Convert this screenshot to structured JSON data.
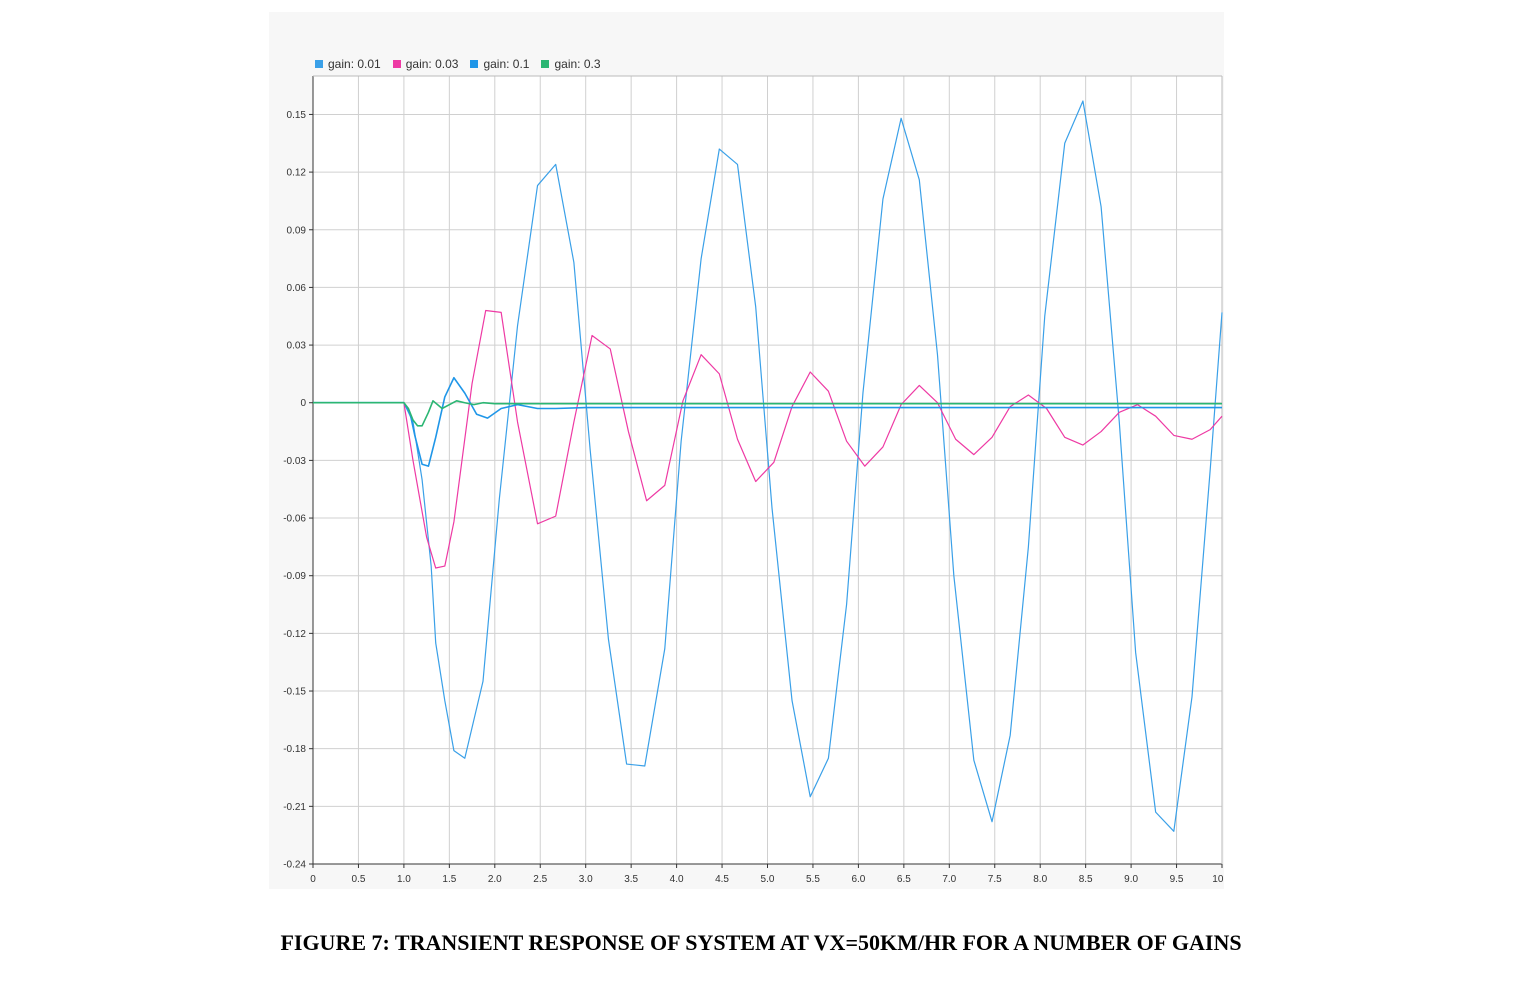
{
  "caption": "FIGURE 7: TRANSIENT RESPONSE OF SYSTEM AT VX=50KM/HR FOR A NUMBER OF GAINS",
  "chart_data": {
    "type": "line",
    "title": "",
    "xlabel": "",
    "ylabel": "",
    "xlim": [
      0,
      10
    ],
    "ylim": [
      -0.24,
      0.17
    ],
    "grid": true,
    "legend_position": "top-left",
    "x_ticks": [
      "0",
      "0.5",
      "1.0",
      "1.5",
      "2.0",
      "2.5",
      "3.0",
      "3.5",
      "4.0",
      "4.5",
      "5.0",
      "5.5",
      "6.0",
      "6.5",
      "7.0",
      "7.5",
      "8.0",
      "8.5",
      "9.0",
      "9.5",
      "10.0"
    ],
    "x_tick_values": [
      0,
      0.5,
      1,
      1.5,
      2,
      2.5,
      3,
      3.5,
      4,
      4.5,
      5,
      5.5,
      6,
      6.5,
      7,
      7.5,
      8,
      8.5,
      9,
      9.5,
      10
    ],
    "y_ticks": [
      "0.15",
      "0.12",
      "0.09",
      "0.06",
      "0.03",
      "0",
      "-0.03",
      "-0.06",
      "-0.09",
      "-0.12",
      "-0.15",
      "-0.18",
      "-0.21",
      "-0.24"
    ],
    "y_tick_values": [
      0.15,
      0.12,
      0.09,
      0.06,
      0.03,
      0,
      -0.03,
      -0.06,
      -0.09,
      -0.12,
      -0.15,
      -0.18,
      -0.21,
      -0.24
    ],
    "series": [
      {
        "name": "gain: 0.01",
        "color": "#3aa0e8",
        "points": [
          [
            0,
            0
          ],
          [
            1.0,
            0
          ],
          [
            1.1,
            -0.01
          ],
          [
            1.2,
            -0.04
          ],
          [
            1.3,
            -0.085
          ],
          [
            1.35,
            -0.125
          ],
          [
            1.45,
            -0.155
          ],
          [
            1.55,
            -0.181
          ],
          [
            1.67,
            -0.185
          ],
          [
            1.87,
            -0.145
          ],
          [
            2.05,
            -0.05
          ],
          [
            2.25,
            0.04
          ],
          [
            2.47,
            0.113
          ],
          [
            2.67,
            0.124
          ],
          [
            2.87,
            0.073
          ],
          [
            3.05,
            -0.025
          ],
          [
            3.25,
            -0.123
          ],
          [
            3.45,
            -0.188
          ],
          [
            3.65,
            -0.189
          ],
          [
            3.87,
            -0.128
          ],
          [
            4.05,
            -0.02
          ],
          [
            4.27,
            0.075
          ],
          [
            4.47,
            0.132
          ],
          [
            4.67,
            0.124
          ],
          [
            4.87,
            0.05
          ],
          [
            5.05,
            -0.055
          ],
          [
            5.27,
            -0.155
          ],
          [
            5.47,
            -0.205
          ],
          [
            5.67,
            -0.185
          ],
          [
            5.87,
            -0.105
          ],
          [
            6.05,
            0.005
          ],
          [
            6.27,
            0.106
          ],
          [
            6.47,
            0.148
          ],
          [
            6.67,
            0.116
          ],
          [
            6.87,
            0.025
          ],
          [
            7.05,
            -0.09
          ],
          [
            7.27,
            -0.186
          ],
          [
            7.47,
            -0.218
          ],
          [
            7.67,
            -0.173
          ],
          [
            7.87,
            -0.075
          ],
          [
            8.05,
            0.045
          ],
          [
            8.27,
            0.135
          ],
          [
            8.47,
            0.157
          ],
          [
            8.67,
            0.102
          ],
          [
            8.87,
            -0.01
          ],
          [
            9.05,
            -0.13
          ],
          [
            9.27,
            -0.213
          ],
          [
            9.47,
            -0.223
          ],
          [
            9.67,
            -0.153
          ],
          [
            9.87,
            -0.035
          ],
          [
            10.0,
            0.047
          ]
        ]
      },
      {
        "name": "gain: 0.03",
        "color": "#ee3aa4",
        "points": [
          [
            0,
            0
          ],
          [
            1.0,
            0
          ],
          [
            1.1,
            -0.03
          ],
          [
            1.25,
            -0.07
          ],
          [
            1.35,
            -0.086
          ],
          [
            1.45,
            -0.085
          ],
          [
            1.55,
            -0.062
          ],
          [
            1.75,
            0.01
          ],
          [
            1.9,
            0.048
          ],
          [
            2.07,
            0.047
          ],
          [
            2.25,
            -0.01
          ],
          [
            2.47,
            -0.063
          ],
          [
            2.67,
            -0.059
          ],
          [
            2.87,
            -0.01
          ],
          [
            3.07,
            0.035
          ],
          [
            3.27,
            0.028
          ],
          [
            3.47,
            -0.015
          ],
          [
            3.67,
            -0.051
          ],
          [
            3.87,
            -0.043
          ],
          [
            4.07,
            0.001
          ],
          [
            4.27,
            0.025
          ],
          [
            4.47,
            0.015
          ],
          [
            4.67,
            -0.019
          ],
          [
            4.87,
            -0.041
          ],
          [
            5.07,
            -0.031
          ],
          [
            5.27,
            -0.002
          ],
          [
            5.47,
            0.016
          ],
          [
            5.67,
            0.006
          ],
          [
            5.87,
            -0.02
          ],
          [
            6.07,
            -0.033
          ],
          [
            6.27,
            -0.023
          ],
          [
            6.47,
            -0.001
          ],
          [
            6.67,
            0.009
          ],
          [
            6.87,
            0.0
          ],
          [
            7.07,
            -0.019
          ],
          [
            7.27,
            -0.027
          ],
          [
            7.47,
            -0.018
          ],
          [
            7.67,
            -0.002
          ],
          [
            7.87,
            0.004
          ],
          [
            8.07,
            -0.003
          ],
          [
            8.27,
            -0.018
          ],
          [
            8.47,
            -0.022
          ],
          [
            8.67,
            -0.015
          ],
          [
            8.87,
            -0.005
          ],
          [
            9.07,
            -0.001
          ],
          [
            9.27,
            -0.007
          ],
          [
            9.47,
            -0.017
          ],
          [
            9.67,
            -0.019
          ],
          [
            9.87,
            -0.014
          ],
          [
            10.0,
            -0.007
          ]
        ]
      },
      {
        "name": "gain: 0.1",
        "color": "#1f96e8",
        "points": [
          [
            0,
            0
          ],
          [
            1.0,
            0
          ],
          [
            1.07,
            -0.006
          ],
          [
            1.12,
            -0.017
          ],
          [
            1.2,
            -0.032
          ],
          [
            1.27,
            -0.033
          ],
          [
            1.35,
            -0.018
          ],
          [
            1.45,
            0.003
          ],
          [
            1.55,
            0.013
          ],
          [
            1.67,
            0.005
          ],
          [
            1.8,
            -0.006
          ],
          [
            1.92,
            -0.008
          ],
          [
            2.07,
            -0.003
          ],
          [
            2.25,
            -0.001
          ],
          [
            2.47,
            -0.003
          ],
          [
            2.67,
            -0.003
          ],
          [
            3.0,
            -0.0025
          ],
          [
            4.0,
            -0.0025
          ],
          [
            5.0,
            -0.0025
          ],
          [
            6.0,
            -0.0025
          ],
          [
            7.0,
            -0.0025
          ],
          [
            8.0,
            -0.0025
          ],
          [
            9.0,
            -0.0025
          ],
          [
            10.0,
            -0.0025
          ]
        ]
      },
      {
        "name": "gain: 0.3",
        "color": "#2bb673",
        "points": [
          [
            0,
            0
          ],
          [
            1.0,
            0
          ],
          [
            1.05,
            -0.003
          ],
          [
            1.1,
            -0.009
          ],
          [
            1.15,
            -0.012
          ],
          [
            1.2,
            -0.012
          ],
          [
            1.27,
            -0.005
          ],
          [
            1.32,
            0.001
          ],
          [
            1.37,
            -0.001
          ],
          [
            1.42,
            -0.003
          ],
          [
            1.5,
            -0.001
          ],
          [
            1.58,
            0.001
          ],
          [
            1.67,
            0.0
          ],
          [
            1.77,
            -0.001
          ],
          [
            1.87,
            0.0
          ],
          [
            2.0,
            -0.0005
          ],
          [
            2.5,
            -0.0005
          ],
          [
            3.0,
            -0.0005
          ],
          [
            4.0,
            -0.0005
          ],
          [
            5.0,
            -0.0005
          ],
          [
            6.0,
            -0.0005
          ],
          [
            7.0,
            -0.0005
          ],
          [
            8.0,
            -0.0005
          ],
          [
            9.0,
            -0.0005
          ],
          [
            10.0,
            -0.0005
          ]
        ]
      }
    ]
  }
}
